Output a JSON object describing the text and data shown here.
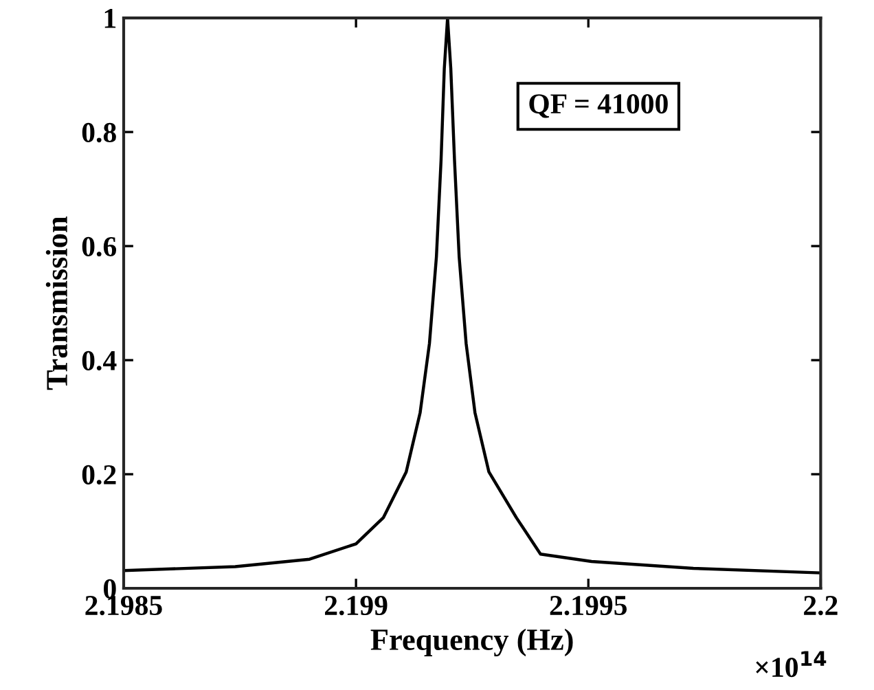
{
  "chart_data": {
    "type": "line",
    "xlabel": "Frequency (Hz)",
    "ylabel": "Transmission",
    "x": [
      2.1985,
      2.19874,
      2.1989,
      2.199,
      2.199059,
      2.199108,
      2.199138,
      2.199158,
      2.199173,
      2.199183,
      2.19919,
      2.199197,
      2.199204,
      2.199212,
      2.199222,
      2.199237,
      2.199256,
      2.199286,
      2.199345,
      2.199397,
      2.199507,
      2.199726,
      2.2
    ],
    "series": [
      {
        "color": "#000000",
        "values": [
          0.031,
          0.038,
          0.051,
          0.078,
          0.124,
          0.204,
          0.308,
          0.429,
          0.581,
          0.75,
          0.911,
          1.0,
          0.911,
          0.75,
          0.581,
          0.429,
          0.308,
          0.204,
          0.124,
          0.06,
          0.047,
          0.035,
          0.027
        ]
      }
    ],
    "xlim": [
      2.1985,
      2.2
    ],
    "xticks": [
      2.1985,
      2.199,
      2.1995,
      2.2
    ],
    "ylim": [
      0,
      1
    ],
    "yticks": [
      0,
      0.2,
      0.4,
      0.6,
      0.8,
      1
    ],
    "annotations": [
      "QF = 41000",
      "×10$^{14}$"
    ],
    "grid": false,
    "legend": false,
    "marker": "none",
    "line_style": "solid"
  }
}
